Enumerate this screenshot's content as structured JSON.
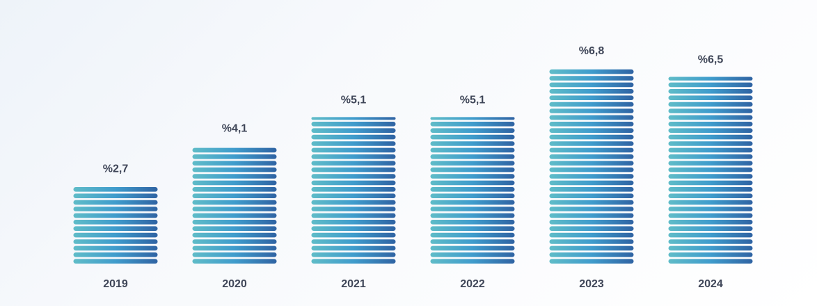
{
  "chart_data": {
    "type": "bar",
    "categories": [
      "2019",
      "2020",
      "2021",
      "2022",
      "2023",
      "2024"
    ],
    "values": [
      2.7,
      4.1,
      5.1,
      5.1,
      6.8,
      6.5
    ],
    "value_labels": [
      "%2,7",
      "%4,1",
      "%5,1",
      "%5,1",
      "%6,8",
      "%6,5"
    ],
    "title": "",
    "xlabel": "",
    "ylabel": "",
    "ylim": [
      0,
      7.5
    ],
    "grid": false,
    "legend": "none",
    "colors": {
      "bar_start": "#5fbcc8",
      "bar_mid": "#3f9ccc",
      "bar_end": "#2f63a3",
      "label_text": "#3f4658"
    }
  }
}
